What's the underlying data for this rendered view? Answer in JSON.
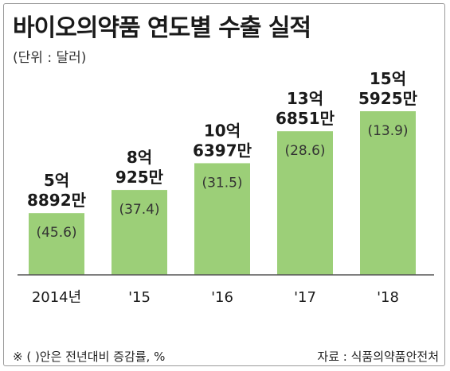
{
  "title": "바이오의약품 연도별 수출 실적",
  "unit_note": "(단위 : 달러)",
  "footnote": "※ (   )안은 전년대비 증감률, %",
  "source": "자료 : 식품의약품안전처",
  "colors": {
    "bar": "#9ccf78",
    "baseline": "#555555",
    "text": "#1a1a1a"
  },
  "chart_data": {
    "type": "bar",
    "categories": [
      "2014년",
      "'15",
      "'16",
      "'17",
      "'18"
    ],
    "values": [
      588920000,
      809250000,
      1063970000,
      1368510000,
      1559250000
    ],
    "value_labels": [
      [
        "5억",
        "8892만"
      ],
      [
        "8억",
        "925만"
      ],
      [
        "10억",
        "6397만"
      ],
      [
        "13억",
        "6851만"
      ],
      [
        "15억",
        "5925만"
      ]
    ],
    "growth_labels": [
      "(45.6)",
      "(37.4)",
      "(31.5)",
      "(28.6)",
      "(13.9)"
    ],
    "growth_rates": [
      45.6,
      37.4,
      31.5,
      28.6,
      13.9
    ],
    "ylim": [
      0,
      1559250000
    ],
    "grid": false,
    "legend": "none"
  }
}
